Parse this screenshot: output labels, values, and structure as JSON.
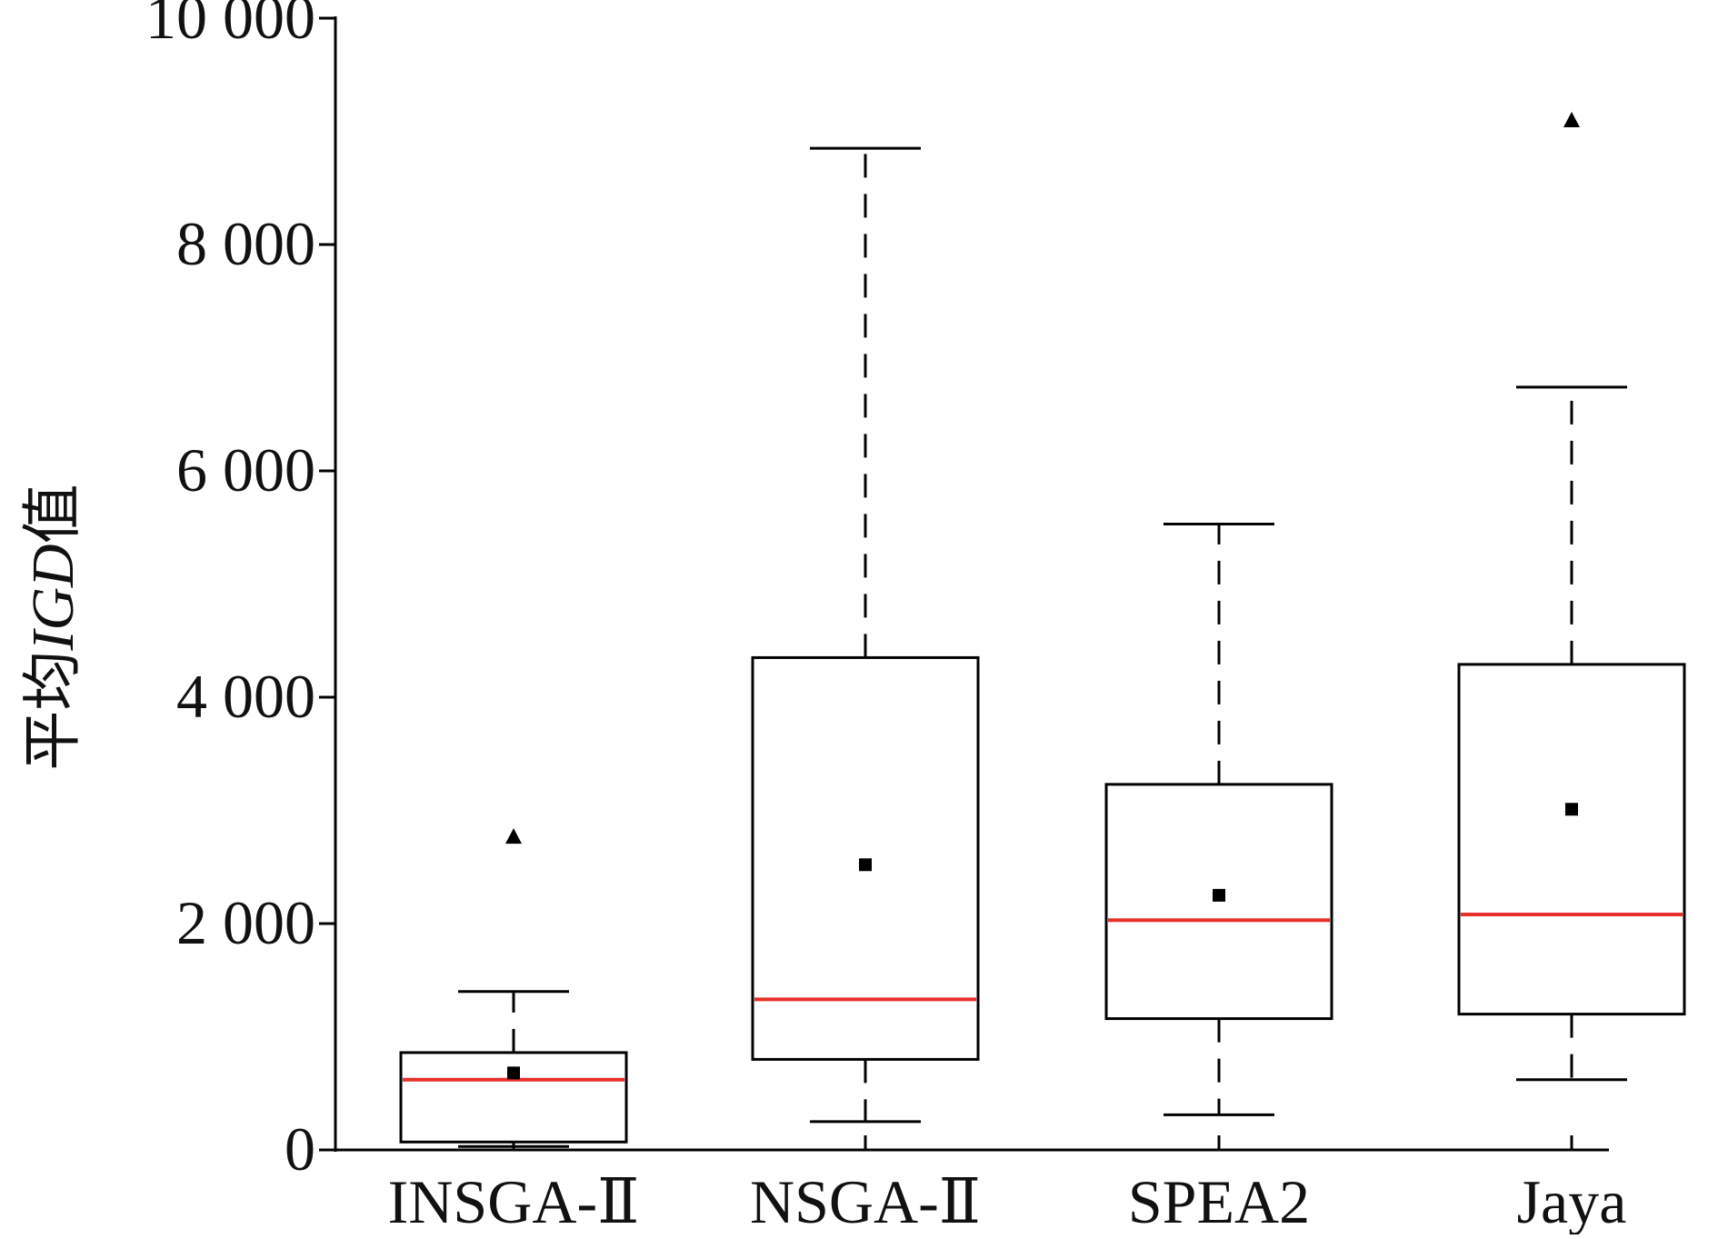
{
  "chart_data": {
    "type": "box",
    "ylabel_parts": {
      "pre": "平均",
      "italic": "IGD",
      "post": "值"
    },
    "xlabel": "",
    "ylim": [
      0,
      10000
    ],
    "yticks": [
      0,
      2000,
      4000,
      6000,
      8000,
      10000
    ],
    "ytick_labels": [
      "0",
      "2 000",
      "4 000",
      "6 000",
      "8 000",
      "10 000"
    ],
    "categories": [
      "INSGA-Ⅱ",
      "NSGA-Ⅱ",
      "SPEA2",
      "Jaya"
    ],
    "boxes": [
      {
        "category": "INSGA-Ⅱ",
        "whisker_low": 30,
        "q1": 70,
        "median": 620,
        "q3": 860,
        "whisker_high": 1400,
        "mean": 680,
        "outliers": [
          2770
        ]
      },
      {
        "category": "NSGA-Ⅱ",
        "whisker_low": 250,
        "q1": 800,
        "median": 1330,
        "q3": 4350,
        "whisker_high": 8850,
        "mean": 2520,
        "outliers": []
      },
      {
        "category": "SPEA2",
        "whisker_low": 310,
        "q1": 1160,
        "median": 2030,
        "q3": 3230,
        "whisker_high": 5530,
        "mean": 2250,
        "outliers": []
      },
      {
        "category": "Jaya",
        "whisker_low": 620,
        "q1": 1200,
        "median": 2080,
        "q3": 4290,
        "whisker_high": 6740,
        "mean": 3010,
        "outliers": [
          9100
        ]
      }
    ],
    "colors": {
      "median": "#e8302a",
      "box": "#000000",
      "mean_marker": "#000000",
      "outlier_marker": "#000000"
    },
    "mean_marker": "square",
    "outlier_marker": "triangle",
    "whisker_style": "dashed",
    "grid": false
  }
}
